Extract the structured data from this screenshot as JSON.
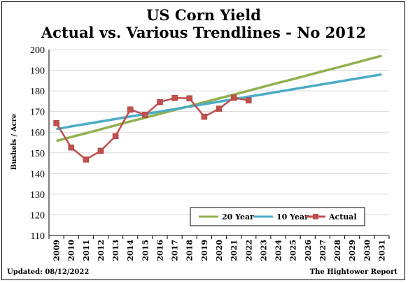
{
  "chart_data": {
    "type": "line",
    "title": "US Corn Yield",
    "subtitle": "Actual vs. Various Trendlines - No 2012",
    "ylabel": "Bushels / Acre",
    "xlabel": "",
    "ylim": [
      110,
      200
    ],
    "yticks": [
      "110",
      "120",
      "130",
      "140",
      "150",
      "160",
      "170",
      "180",
      "190",
      "200"
    ],
    "ytick_values": [
      110,
      120,
      130,
      140,
      150,
      160,
      170,
      180,
      190,
      200
    ],
    "categories": [
      "2009",
      "2010",
      "2011",
      "2012",
      "2013",
      "2014",
      "2015",
      "2016",
      "2017",
      "2018",
      "2019",
      "2020",
      "2021",
      "2022",
      "2023",
      "2024",
      "2025",
      "2026",
      "2027",
      "2028",
      "2029",
      "2030",
      "2031"
    ],
    "grid": true,
    "legend_position": "bottom-right",
    "series": [
      {
        "name": "20 Year",
        "color": "#92b050",
        "marker": "none",
        "values": [
          155.8,
          157.7,
          159.5,
          161.4,
          163.3,
          165.2,
          167.0,
          168.9,
          170.8,
          172.6,
          174.5,
          176.4,
          178.2,
          180.1,
          182.0,
          183.9,
          185.7,
          187.6,
          189.5,
          191.3,
          193.2,
          195.1,
          197.0
        ]
      },
      {
        "name": "10 Year",
        "color": "#4bacc6",
        "marker": "none",
        "values": [
          161.5,
          162.8,
          164.0,
          165.2,
          166.4,
          167.6,
          168.8,
          170.0,
          171.2,
          172.4,
          173.6,
          174.8,
          176.0,
          177.2,
          178.4,
          179.6,
          180.8,
          182.0,
          183.2,
          184.4,
          185.6,
          186.8,
          188.0
        ]
      },
      {
        "name": "Actual",
        "color": "#c0504d",
        "marker": "square",
        "values": [
          164.4,
          152.6,
          146.8,
          151.0,
          158.1,
          171.0,
          168.4,
          174.6,
          176.6,
          176.4,
          167.5,
          171.4,
          176.7,
          175.4,
          null,
          null,
          null,
          null,
          null,
          null,
          null,
          null,
          null
        ]
      }
    ]
  },
  "footer": {
    "updated": "Updated:  08/12/2022",
    "source": "The Hightower Report"
  },
  "colors": {
    "grid": "#d9d9d9",
    "axis": "#000000"
  }
}
